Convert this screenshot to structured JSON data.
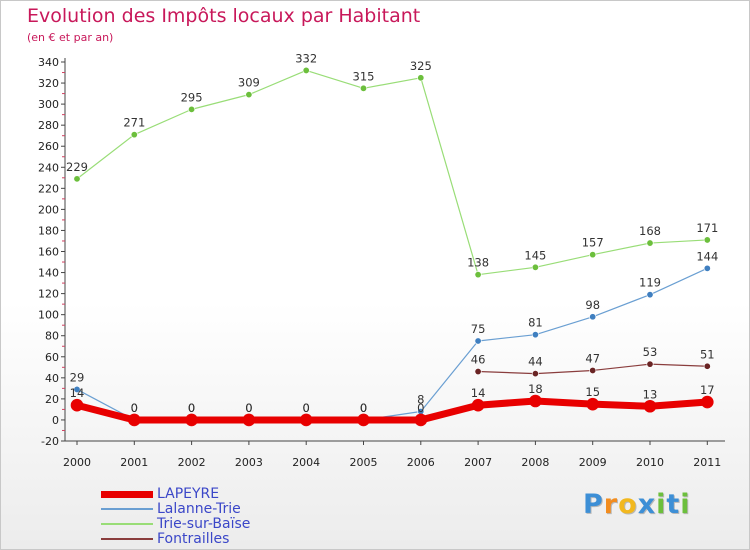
{
  "chart_data": {
    "type": "line",
    "title": "Evolution des Impôts locaux par Habitant",
    "subtitle": "(en € et par an)",
    "xlabel": "",
    "ylabel": "",
    "ylim": [
      -20,
      340
    ],
    "yticks": [
      -20,
      0,
      20,
      40,
      60,
      80,
      100,
      120,
      140,
      160,
      180,
      200,
      220,
      240,
      260,
      280,
      300,
      320,
      340
    ],
    "categories": [
      "2000",
      "2001",
      "2002",
      "2003",
      "2004",
      "2005",
      "2006",
      "2007",
      "2008",
      "2009",
      "2010",
      "2011"
    ],
    "grid": false,
    "legend_position": "bottom-left",
    "series": [
      {
        "name": "Trie-sur-Baïse",
        "color": "#99dd77",
        "point_color": "#6cbf3c",
        "line_width": 1.2,
        "point_radius": 3.2,
        "values": [
          229,
          271,
          295,
          309,
          332,
          315,
          325,
          138,
          145,
          157,
          168,
          171
        ]
      },
      {
        "name": "Lalanne-Trie",
        "color": "#6a9fd2",
        "point_color": "#3f7fc0",
        "line_width": 1.2,
        "point_radius": 3.2,
        "values": [
          29,
          0,
          0,
          0,
          0,
          0,
          8,
          75,
          81,
          98,
          119,
          144
        ]
      },
      {
        "name": "Fontrailles",
        "color": "#8a3d3d",
        "point_color": "#6a2424",
        "line_width": 1.2,
        "point_radius": 3.2,
        "values": [
          null,
          null,
          null,
          null,
          null,
          null,
          null,
          46,
          44,
          47,
          53,
          51
        ]
      },
      {
        "name": "LAPEYRE",
        "color": "#e80000",
        "point_color": "#e80000",
        "line_width": 7,
        "point_radius": 6,
        "values": [
          14,
          0,
          0,
          0,
          0,
          0,
          0,
          14,
          18,
          15,
          13,
          17
        ]
      }
    ],
    "legend_order": [
      "LAPEYRE",
      "Lalanne-Trie",
      "Trie-sur-Baïse",
      "Fontrailles"
    ]
  },
  "watermark": {
    "text": "Proxiti",
    "letters": [
      "P",
      "r",
      "o",
      "x",
      "i",
      "t",
      "i"
    ],
    "colors": [
      "#3d8fd6",
      "#f28c1e",
      "#f2b81e",
      "#3d8fd6",
      "#6cbf3c",
      "#3d8fd6",
      "#6cbf3c"
    ]
  }
}
